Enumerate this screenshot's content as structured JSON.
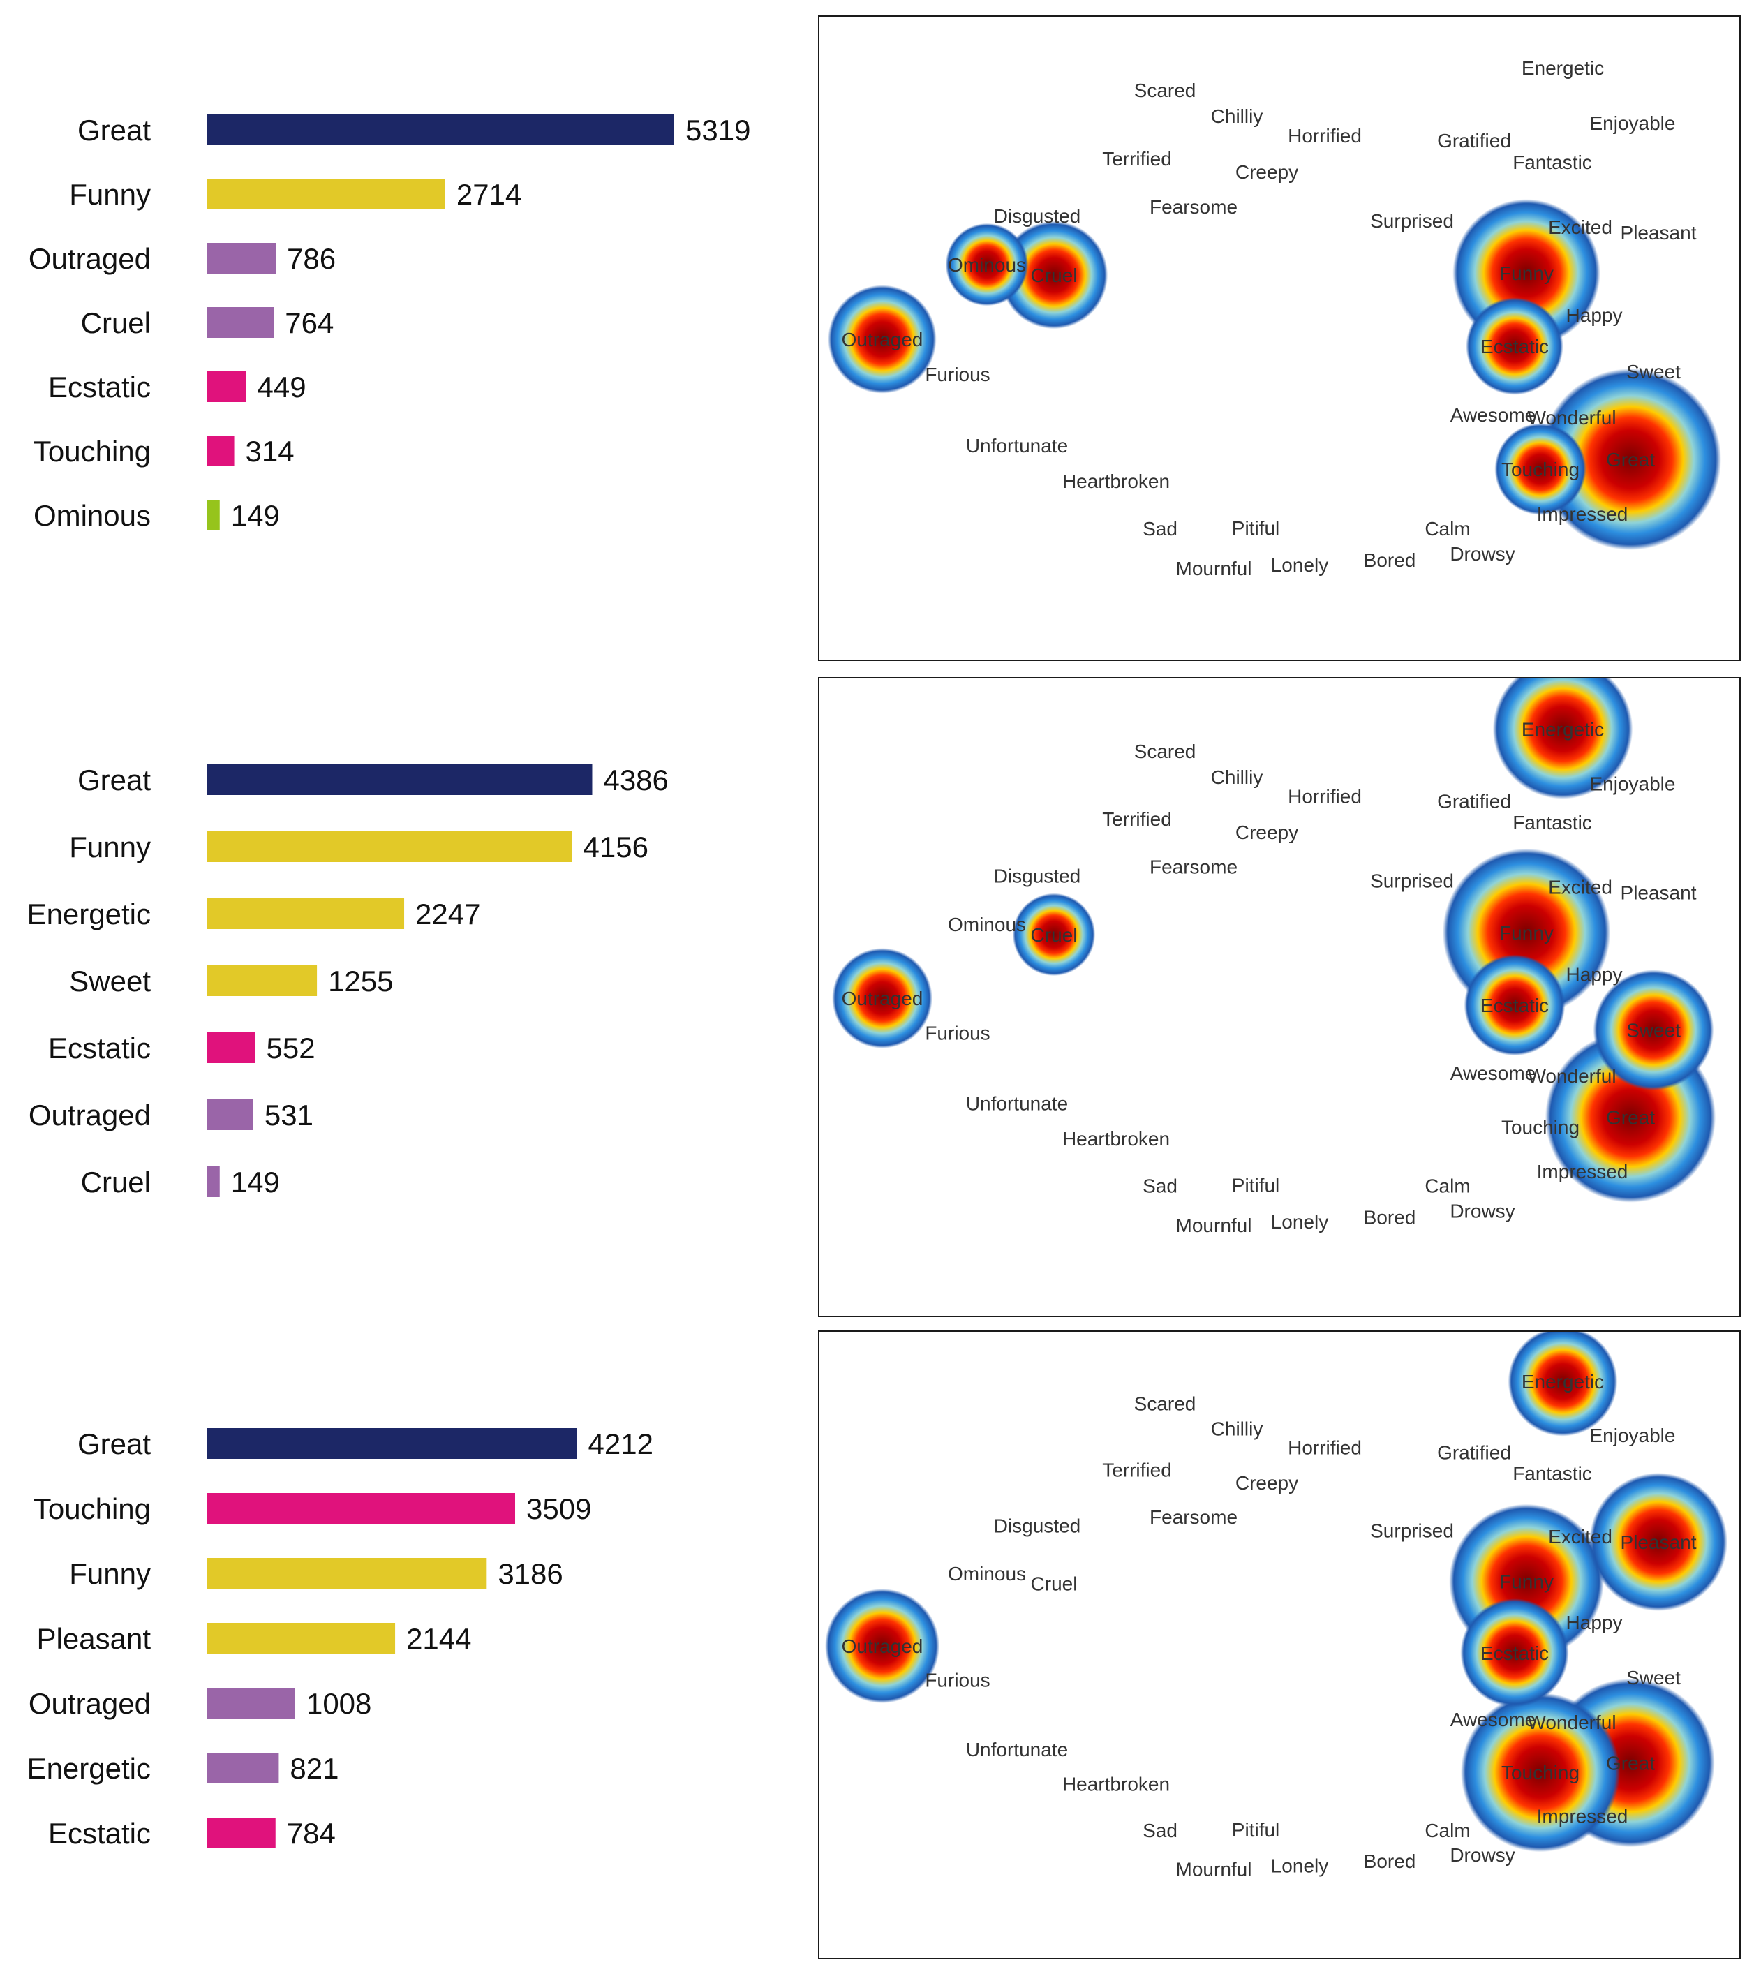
{
  "colors": {
    "dark_navy": "#1c2766",
    "yellow": "#e2c928",
    "purple": "#9a65a8",
    "magenta": "#e0127c",
    "green": "#96c41c"
  },
  "chart_data": [
    {
      "type": "bar",
      "orientation": "horizontal",
      "title": "",
      "categories": [
        "Great",
        "Funny",
        "Outraged",
        "Cruel",
        "Ecstatic",
        "Touching",
        "Ominous"
      ],
      "values": [
        5319,
        2714,
        786,
        764,
        449,
        314,
        149
      ],
      "colors": [
        "dark_navy",
        "yellow",
        "purple",
        "purple",
        "magenta",
        "magenta",
        "green"
      ],
      "xlim": [
        0,
        5319
      ]
    },
    {
      "type": "bar",
      "orientation": "horizontal",
      "title": "",
      "categories": [
        "Great",
        "Funny",
        "Energetic",
        "Sweet",
        "Ecstatic",
        "Outraged",
        "Cruel"
      ],
      "values": [
        4386,
        4156,
        2247,
        1255,
        552,
        531,
        149
      ],
      "colors": [
        "dark_navy",
        "yellow",
        "yellow",
        "yellow",
        "magenta",
        "purple",
        "purple"
      ],
      "xlim": [
        0,
        5319
      ]
    },
    {
      "type": "bar",
      "orientation": "horizontal",
      "title": "",
      "categories": [
        "Great",
        "Touching",
        "Funny",
        "Pleasant",
        "Outraged",
        "Energetic",
        "Ecstatic"
      ],
      "values": [
        4212,
        3509,
        3186,
        2144,
        1008,
        821,
        784
      ],
      "colors": [
        "dark_navy",
        "magenta",
        "yellow",
        "yellow",
        "purple",
        "purple",
        "magenta"
      ],
      "xlim": [
        0,
        5319
      ]
    },
    {
      "type": "heatmap",
      "title": "",
      "words": [
        "Scared",
        "Chilliy",
        "Horrified",
        "Terrified",
        "Creepy",
        "Fearsome",
        "Disgusted",
        "Ominous",
        "Cruel",
        "Outraged",
        "Furious",
        "Unfortunate",
        "Heartbroken",
        "Sad",
        "Pitiful",
        "Mournful",
        "Lonely",
        "Bored",
        "Calm",
        "Drowsy",
        "Energetic",
        "Enjoyable",
        "Gratified",
        "Fantastic",
        "Surprised",
        "Excited",
        "Pleasant",
        "Funny",
        "Happy",
        "Ecstatic",
        "Sweet",
        "Awesome",
        "Wonderful",
        "Touching",
        "Great",
        "Impressed"
      ],
      "hotspot_counts": {
        "Great": 5319,
        "Funny": 2714,
        "Outraged": 786,
        "Cruel": 764,
        "Ecstatic": 449,
        "Touching": 314,
        "Ominous": 149
      }
    },
    {
      "type": "heatmap",
      "title": "",
      "words": [
        "Scared",
        "Chilliy",
        "Horrified",
        "Terrified",
        "Creepy",
        "Fearsome",
        "Disgusted",
        "Ominous",
        "Cruel",
        "Outraged",
        "Furious",
        "Unfortunate",
        "Heartbroken",
        "Sad",
        "Pitiful",
        "Mournful",
        "Lonely",
        "Bored",
        "Calm",
        "Drowsy",
        "Energetic",
        "Enjoyable",
        "Gratified",
        "Fantastic",
        "Surprised",
        "Excited",
        "Pleasant",
        "Funny",
        "Happy",
        "Ecstatic",
        "Sweet",
        "Awesome",
        "Wonderful",
        "Touching",
        "Great",
        "Impressed"
      ],
      "hotspot_counts": {
        "Great": 4386,
        "Funny": 4156,
        "Energetic": 2247,
        "Sweet": 1255,
        "Ecstatic": 552,
        "Outraged": 531,
        "Cruel": 149
      }
    },
    {
      "type": "heatmap",
      "title": "",
      "words": [
        "Scared",
        "Chilliy",
        "Horrified",
        "Terrified",
        "Creepy",
        "Fearsome",
        "Disgusted",
        "Ominous",
        "Cruel",
        "Outraged",
        "Furious",
        "Unfortunate",
        "Heartbroken",
        "Sad",
        "Pitiful",
        "Mournful",
        "Lonely",
        "Bored",
        "Calm",
        "Drowsy",
        "Energetic",
        "Enjoyable",
        "Gratified",
        "Fantastic",
        "Surprised",
        "Excited",
        "Pleasant",
        "Funny",
        "Happy",
        "Ecstatic",
        "Sweet",
        "Awesome",
        "Wonderful",
        "Touching",
        "Great",
        "Impressed"
      ],
      "hotspot_counts": {
        "Great": 4212,
        "Touching": 3509,
        "Funny": 3186,
        "Pleasant": 2144,
        "Outraged": 1008,
        "Energetic": 821,
        "Ecstatic": 784
      }
    }
  ]
}
